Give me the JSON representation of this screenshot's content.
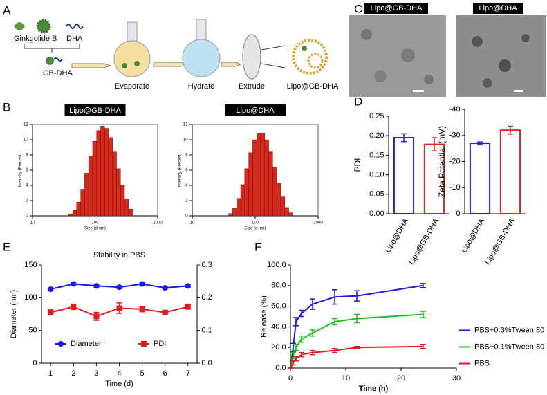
{
  "panels": [
    "A",
    "B",
    "C",
    "D",
    "E",
    "F"
  ],
  "scheme": {
    "items": [
      "Ginkgolide B",
      "DHA",
      "GB-DHA"
    ],
    "steps": [
      "Evaporate",
      "Hydrate",
      "Extrude",
      "Lipo@GB-DHA"
    ]
  },
  "micrographs": {
    "titles": [
      "Lipo@GB-DHA",
      "Lipo@DHA"
    ]
  },
  "chart_data": [
    {
      "type": "histogram",
      "title": "Lipo@GB-DHA",
      "xlabel": "Size (d.nm)",
      "ylabel": "Intensity (Percent)",
      "xscale": "log",
      "xlim": [
        10,
        1000
      ],
      "xticks": [
        10,
        100,
        1000
      ],
      "ylim": [
        0,
        12
      ],
      "yticks": [
        0,
        2,
        4,
        6,
        8,
        10,
        12
      ],
      "color": "#d42a1e",
      "bins": [
        37.8,
        43.8,
        50.7,
        58.8,
        68.1,
        78.8,
        91.3,
        105.7,
        122.4,
        141.8,
        164.2,
        190.1,
        220.2,
        255.0,
        295.3,
        342.0,
        396.1
      ],
      "counts": [
        0.2,
        0.7,
        1.8,
        3.5,
        5.6,
        7.8,
        9.8,
        11.2,
        11.8,
        11.5,
        10.3,
        8.4,
        6.2,
        4.0,
        2.2,
        0.9
      ]
    },
    {
      "type": "histogram",
      "title": "Lipo@DHA",
      "xlabel": "Size (d.nm)",
      "ylabel": "Intensity (Percent)",
      "xscale": "log",
      "xlim": [
        10,
        1000
      ],
      "xticks": [
        10,
        100,
        1000
      ],
      "ylim": [
        0,
        12
      ],
      "yticks": [
        0,
        2,
        4,
        6,
        8,
        10,
        12
      ],
      "color": "#d42a1e",
      "bins": [
        37.8,
        43.8,
        50.7,
        58.8,
        68.1,
        78.8,
        91.3,
        105.7,
        122.4,
        141.8,
        164.2,
        190.1,
        220.2,
        255.0,
        295.3,
        342.0,
        396.1
      ],
      "counts": [
        0.3,
        1.0,
        2.3,
        4.1,
        6.2,
        8.3,
        10.0,
        10.9,
        10.9,
        10.0,
        8.4,
        6.4,
        4.3,
        2.5,
        1.1,
        0.4
      ]
    },
    {
      "type": "bar",
      "ylabel": "PDI",
      "categories": [
        "Lipo@DHA",
        "Lipo@GB-DHA"
      ],
      "values": [
        0.195,
        0.178
      ],
      "errors": [
        0.01,
        0.017
      ],
      "colors": [
        "#2020e0",
        "#e82020"
      ],
      "ylim": [
        0,
        0.25
      ],
      "yticks": [
        {
          "value": 0,
          "label": "0.00"
        },
        {
          "value": 0.05,
          "label": "0.05"
        },
        {
          "value": 0.1,
          "label": "0.10"
        },
        {
          "value": 0.15,
          "label": "0.15"
        },
        {
          "value": 0.2,
          "label": "0.20"
        },
        {
          "value": 0.25,
          "label": "0.25"
        }
      ]
    },
    {
      "type": "bar",
      "ylabel": "Zeta Potential (mV)",
      "categories": [
        "Lipo@DHA",
        "Lipo@GB-DHA"
      ],
      "values": [
        -27,
        -32
      ],
      "errors": [
        0.5,
        1.5
      ],
      "colors": [
        "#2020e0",
        "#e82020"
      ],
      "ylim": [
        0,
        -40
      ],
      "yticks": [
        0,
        -10,
        -20,
        -30,
        -40
      ]
    },
    {
      "type": "line",
      "title": "Stability in PBS",
      "xlabel": "Time (d)",
      "ylabel": "Diameter (nm)",
      "x": [
        1,
        2,
        3,
        4,
        5,
        6,
        7
      ],
      "xlim": [
        0.6,
        7.4
      ],
      "xticks": [
        1,
        2,
        3,
        4,
        5,
        6,
        7
      ],
      "ylim": [
        0,
        150
      ],
      "yticks": [
        0,
        50,
        100,
        150
      ],
      "y2lim": [
        0,
        0.3
      ],
      "y2ticks": [
        {
          "value": 0,
          "label": "0.0"
        },
        {
          "value": 0.1,
          "label": "0.1"
        },
        {
          "value": 0.2,
          "label": "0.2"
        },
        {
          "value": 0.3,
          "label": "0.3"
        }
      ],
      "legend": "lower center",
      "series": [
        {
          "name": "Diameter",
          "color": "#1a1ae6",
          "marker": "circle",
          "values": [
            113,
            121,
            118,
            116,
            121,
            115,
            118
          ],
          "errors": [
            2,
            2,
            2,
            2,
            2,
            2,
            2
          ]
        },
        {
          "name": "PDI",
          "color": "#e61a1a",
          "marker": "square",
          "axis": "y2",
          "values": [
            0.155,
            0.172,
            0.143,
            0.168,
            0.165,
            0.155,
            0.172
          ],
          "errors": [
            0.008,
            0.008,
            0.012,
            0.016,
            0.008,
            0.006,
            0.006
          ]
        }
      ]
    },
    {
      "type": "line",
      "xlabel": "Time (h)",
      "ylabel": "Release (%)",
      "x": [
        0,
        0.5,
        1,
        2,
        4,
        8,
        12,
        24
      ],
      "xlim": [
        0,
        30
      ],
      "xticks": [
        0,
        10,
        20,
        30
      ],
      "ylim": [
        0,
        100
      ],
      "yticks": [
        {
          "value": 0,
          "label": "0.0"
        },
        {
          "value": 20,
          "label": "20.0"
        },
        {
          "value": 40,
          "label": "40.0"
        },
        {
          "value": 60,
          "label": "60.0"
        },
        {
          "value": 80,
          "label": "80.0"
        },
        {
          "value": 100,
          "label": "100.0"
        }
      ],
      "legend": "right",
      "series": [
        {
          "name": "PBS+0.3%Tween 80",
          "color": "#1a1ae6",
          "values": [
            0,
            20,
            45,
            53,
            62,
            69,
            70,
            80
          ],
          "errors": [
            0,
            4,
            4,
            3,
            5,
            7,
            5,
            2
          ]
        },
        {
          "name": "PBS+0.1%Tween 80",
          "color": "#18c418",
          "values": [
            0,
            12,
            20,
            28,
            34,
            45,
            48,
            52
          ],
          "errors": [
            0,
            3,
            3,
            3,
            3,
            3,
            4,
            3
          ]
        },
        {
          "name": "PBS",
          "color": "#e61a1a",
          "values": [
            0,
            5,
            9,
            13,
            15,
            17,
            20,
            21
          ],
          "errors": [
            0,
            2,
            2,
            2,
            2,
            2,
            1,
            2
          ]
        }
      ]
    }
  ]
}
